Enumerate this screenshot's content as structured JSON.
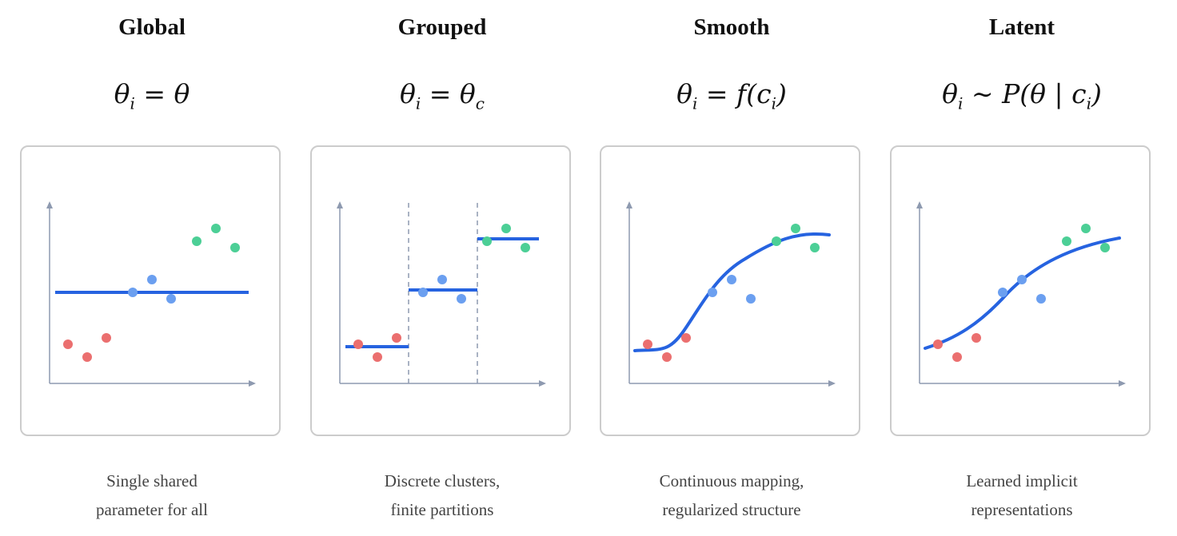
{
  "colors": {
    "red": "#eb6f6f",
    "blue_point": "#6b9ff0",
    "green": "#4ccf96",
    "fit_line": "#2663e0",
    "axis": "#8e9ab0",
    "panel_border": "#cccccc"
  },
  "panels": [
    {
      "id": "global",
      "title": "Global",
      "formula": {
        "lhs": "θ",
        "sub": "i",
        "op": "=",
        "rhs": "θ"
      },
      "caption": [
        "Single shared",
        "parameter for all"
      ],
      "fit_type": "constant"
    },
    {
      "id": "grouped",
      "title": "Grouped",
      "formula": {
        "lhs": "θ",
        "sub": "i",
        "op": "=",
        "rhs": "θ",
        "rhs_sub": "c"
      },
      "caption": [
        "Discrete clusters,",
        "finite partitions"
      ],
      "fit_type": "piecewise"
    },
    {
      "id": "smooth",
      "title": "Smooth",
      "formula": {
        "lhs": "θ",
        "sub": "i",
        "op": "=",
        "rhs": "f(c",
        "rhs_sub": "i",
        "rhs_tail": ")"
      },
      "caption": [
        "Continuous mapping,",
        "regularized structure"
      ],
      "fit_type": "sigmoid"
    },
    {
      "id": "latent",
      "title": "Latent",
      "formula": {
        "lhs": "θ",
        "sub": "i",
        "op": "∼",
        "rhs": "P(θ | c",
        "rhs_sub": "i",
        "rhs_tail": ")"
      },
      "caption": [
        "Learned implicit",
        "representations"
      ],
      "fit_type": "gentle-curve"
    }
  ]
}
